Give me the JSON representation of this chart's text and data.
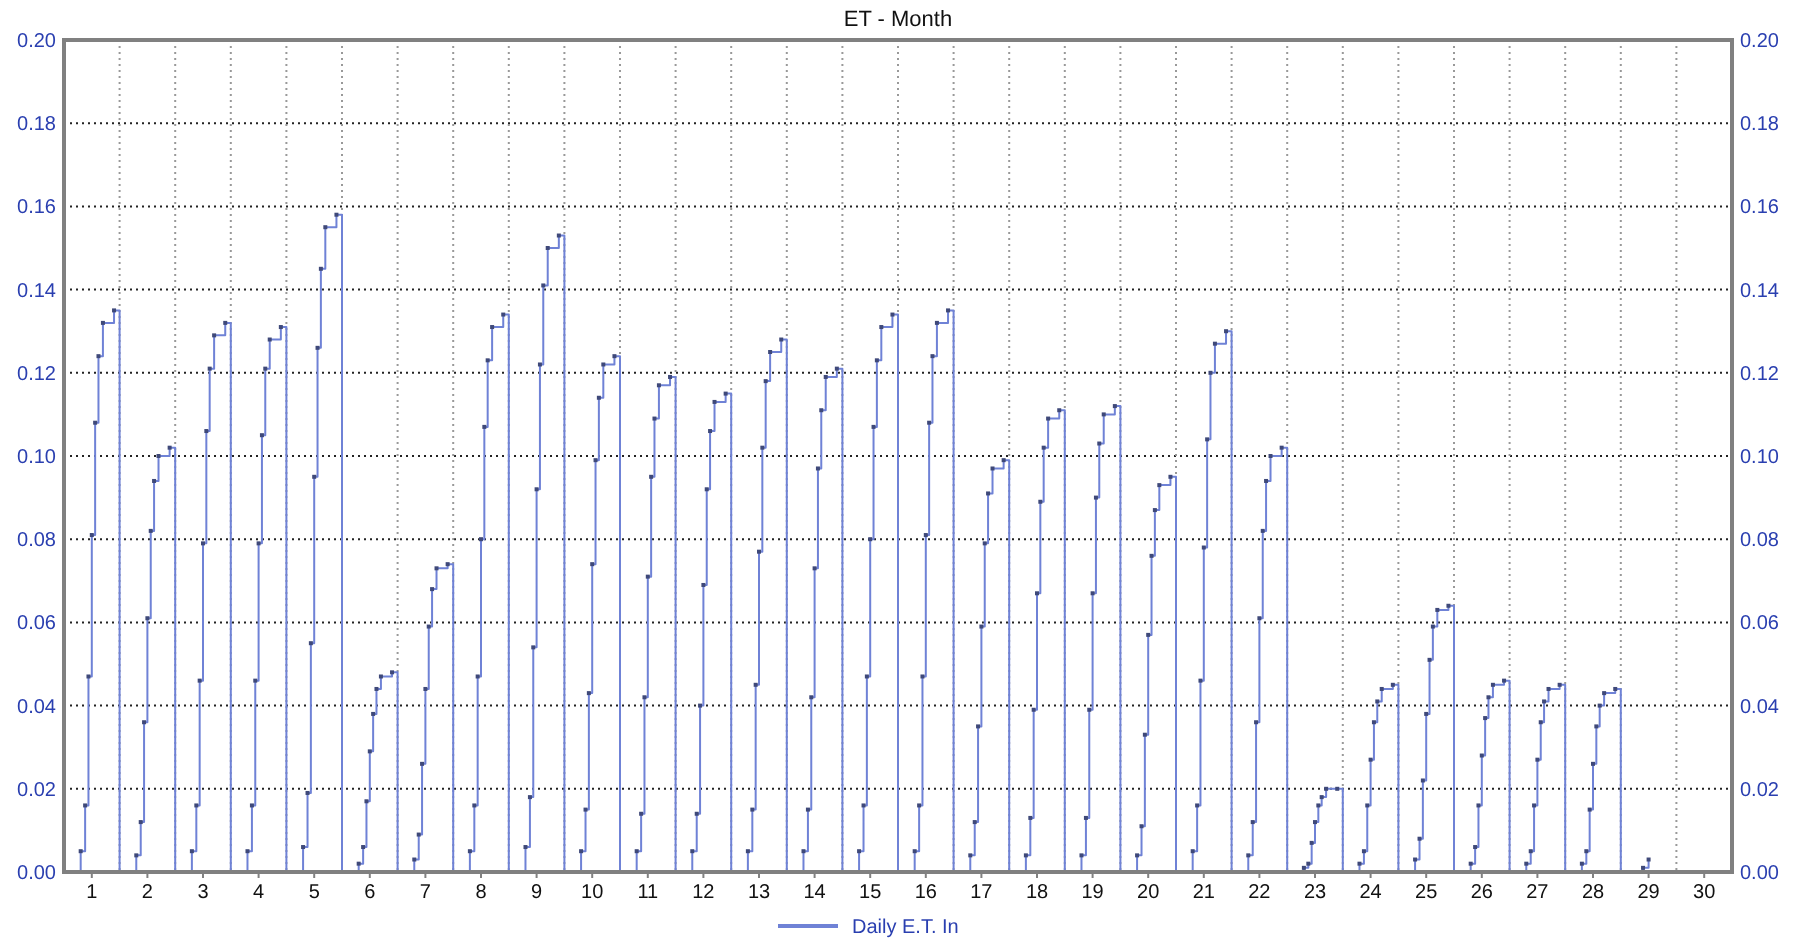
{
  "chart_data": {
    "type": "step",
    "title": "ET - Month",
    "legend": "bottom",
    "grid": true,
    "marker": "square",
    "line_style": "solid",
    "xlim": [
      0.5,
      30.5
    ],
    "xticks": [
      1,
      {
        "value": 1.5,
        "label": null
      },
      2,
      {
        "value": 2.5,
        "label": null
      },
      3,
      {
        "value": 3.5,
        "label": null
      },
      4,
      {
        "value": 4.5,
        "label": null
      },
      5,
      {
        "value": 5.5,
        "label": null
      },
      6,
      {
        "value": 6.5,
        "label": null
      },
      7,
      {
        "value": 7.5,
        "label": null
      },
      8,
      {
        "value": 8.5,
        "label": null
      },
      9,
      {
        "value": 9.5,
        "label": null
      },
      10,
      {
        "value": 10.5,
        "label": null
      },
      11,
      {
        "value": 11.5,
        "label": null
      },
      12,
      {
        "value": 12.5,
        "label": null
      },
      13,
      {
        "value": 13.5,
        "label": null
      },
      14,
      {
        "value": 14.5,
        "label": null
      },
      15,
      {
        "value": 15.5,
        "label": null
      },
      16,
      {
        "value": 16.5,
        "label": null
      },
      17,
      {
        "value": 17.5,
        "label": null
      },
      18,
      {
        "value": 18.5,
        "label": null
      },
      19,
      {
        "value": 19.5,
        "label": null
      },
      20,
      {
        "value": 20.5,
        "label": null
      },
      21,
      {
        "value": 21.5,
        "label": null
      },
      22,
      {
        "value": 22.5,
        "label": null
      },
      23,
      {
        "value": 23.5,
        "label": null
      },
      24,
      {
        "value": 24.5,
        "label": null
      },
      25,
      {
        "value": 25.5,
        "label": null
      },
      26,
      {
        "value": 26.5,
        "label": null
      },
      27,
      {
        "value": 27.5,
        "label": null
      },
      28,
      {
        "value": 28.5,
        "label": null
      },
      29,
      {
        "value": 29.5,
        "label": null
      },
      30
    ],
    "ylim": [
      0,
      0.2
    ],
    "yticks": [
      {
        "value": 0,
        "label": "0.00"
      },
      {
        "value": 0.02,
        "label": "0.02"
      },
      {
        "value": 0.04,
        "label": "0.04"
      },
      {
        "value": 0.06,
        "label": "0.06"
      },
      {
        "value": 0.08,
        "label": "0.08"
      },
      {
        "value": 0.1,
        "label": "0.10"
      },
      {
        "value": 0.12,
        "label": "0.12"
      },
      {
        "value": 0.14,
        "label": "0.14"
      },
      {
        "value": 0.16,
        "label": "0.16"
      },
      {
        "value": 0.18,
        "label": "0.18"
      },
      {
        "value": 0.2,
        "label": "0.20"
      }
    ],
    "y2lim": [
      0,
      0.2
    ],
    "y2ticks": [
      {
        "value": 0,
        "label": "0.00"
      },
      {
        "value": 0.02,
        "label": "0.02"
      },
      {
        "value": 0.04,
        "label": "0.04"
      },
      {
        "value": 0.06,
        "label": "0.06"
      },
      {
        "value": 0.08,
        "label": "0.08"
      },
      {
        "value": 0.1,
        "label": "0.10"
      },
      {
        "value": 0.12,
        "label": "0.12"
      },
      {
        "value": 0.14,
        "label": "0.14"
      },
      {
        "value": 0.16,
        "label": "0.16"
      },
      {
        "value": 0.18,
        "label": "0.18"
      },
      {
        "value": 0.2,
        "label": "0.20"
      }
    ],
    "series": [
      {
        "name": "Daily E.T. In",
        "color": "#6f82d6",
        "x": [
          0.5,
          0.8,
          0.88,
          0.94,
          1,
          1.06,
          1.12,
          1.2,
          1.4,
          1.5,
          1.8,
          1.88,
          1.94,
          2,
          2.06,
          2.12,
          2.2,
          2.4,
          2.5,
          2.8,
          2.88,
          2.94,
          3,
          3.06,
          3.12,
          3.2,
          3.4,
          3.5,
          3.8,
          3.88,
          3.94,
          4,
          4.06,
          4.12,
          4.2,
          4.4,
          4.5,
          4.8,
          4.88,
          4.94,
          5,
          5.06,
          5.12,
          5.2,
          5.4,
          5.5,
          5.8,
          5.88,
          5.94,
          6,
          6.06,
          6.12,
          6.2,
          6.4,
          6.5,
          6.8,
          6.88,
          6.94,
          7,
          7.06,
          7.12,
          7.2,
          7.4,
          7.5,
          7.8,
          7.88,
          7.94,
          8,
          8.06,
          8.12,
          8.2,
          8.4,
          8.5,
          8.8,
          8.88,
          8.94,
          9,
          9.06,
          9.12,
          9.2,
          9.4,
          9.5,
          9.8,
          9.88,
          9.94,
          10,
          10.06,
          10.12,
          10.2,
          10.4,
          10.5,
          10.8,
          10.88,
          10.94,
          11,
          11.06,
          11.12,
          11.2,
          11.4,
          11.5,
          11.8,
          11.88,
          11.94,
          12,
          12.06,
          12.12,
          12.2,
          12.4,
          12.5,
          12.8,
          12.88,
          12.94,
          13,
          13.06,
          13.12,
          13.2,
          13.4,
          13.5,
          13.8,
          13.88,
          13.94,
          14,
          14.06,
          14.12,
          14.2,
          14.4,
          14.5,
          14.8,
          14.88,
          14.94,
          15,
          15.06,
          15.12,
          15.2,
          15.4,
          15.5,
          15.8,
          15.88,
          15.94,
          16,
          16.06,
          16.12,
          16.2,
          16.4,
          16.5,
          16.8,
          16.88,
          16.94,
          17,
          17.06,
          17.12,
          17.2,
          17.4,
          17.5,
          17.8,
          17.88,
          17.94,
          18,
          18.06,
          18.12,
          18.2,
          18.4,
          18.5,
          18.8,
          18.88,
          18.94,
          19,
          19.06,
          19.12,
          19.2,
          19.4,
          19.5,
          19.8,
          19.88,
          19.94,
          20,
          20.06,
          20.12,
          20.2,
          20.4,
          20.5,
          20.8,
          20.88,
          20.94,
          21,
          21.06,
          21.12,
          21.2,
          21.4,
          21.5,
          21.8,
          21.88,
          21.94,
          22,
          22.06,
          22.12,
          22.2,
          22.4,
          22.5,
          22.8,
          22.88,
          22.94,
          23,
          23.06,
          23.12,
          23.2,
          23.4,
          23.5,
          23.8,
          23.88,
          23.94,
          24,
          24.06,
          24.12,
          24.2,
          24.4,
          24.5,
          24.8,
          24.88,
          24.94,
          25,
          25.06,
          25.12,
          25.2,
          25.4,
          25.5,
          25.8,
          25.88,
          25.94,
          26,
          26.06,
          26.12,
          26.2,
          26.4,
          26.5,
          26.8,
          26.88,
          26.94,
          27,
          27.06,
          27.12,
          27.2,
          27.4,
          27.5,
          27.8,
          27.88,
          27.94,
          28,
          28.06,
          28.12,
          28.2,
          28.4,
          28.5,
          28.9,
          29.0
        ],
        "values": [
          0,
          0.005,
          0.016,
          0.047,
          0.081,
          0.108,
          0.124,
          0.132,
          0.135,
          0,
          0.004,
          0.012,
          0.036,
          0.061,
          0.082,
          0.094,
          0.1,
          0.102,
          0,
          0.005,
          0.016,
          0.046,
          0.079,
          0.106,
          0.121,
          0.129,
          0.132,
          0,
          0.005,
          0.016,
          0.046,
          0.079,
          0.105,
          0.121,
          0.128,
          0.131,
          0,
          0.006,
          0.019,
          0.055,
          0.095,
          0.126,
          0.145,
          0.155,
          0.158,
          0,
          0.002,
          0.006,
          0.017,
          0.029,
          0.038,
          0.044,
          0.047,
          0.048,
          0,
          0.003,
          0.009,
          0.026,
          0.044,
          0.059,
          0.068,
          0.073,
          0.074,
          0,
          0.005,
          0.016,
          0.047,
          0.08,
          0.107,
          0.123,
          0.131,
          0.134,
          0,
          0.006,
          0.018,
          0.054,
          0.092,
          0.122,
          0.141,
          0.15,
          0.153,
          0,
          0.005,
          0.015,
          0.043,
          0.074,
          0.099,
          0.114,
          0.122,
          0.124,
          0,
          0.005,
          0.014,
          0.042,
          0.071,
          0.095,
          0.109,
          0.117,
          0.119,
          0,
          0.005,
          0.014,
          0.04,
          0.069,
          0.092,
          0.106,
          0.113,
          0.115,
          0,
          0.005,
          0.015,
          0.045,
          0.077,
          0.102,
          0.118,
          0.125,
          0.128,
          0,
          0.005,
          0.015,
          0.042,
          0.073,
          0.097,
          0.111,
          0.119,
          0.121,
          0,
          0.005,
          0.016,
          0.047,
          0.08,
          0.107,
          0.123,
          0.131,
          0.134,
          0,
          0.005,
          0.016,
          0.047,
          0.081,
          0.108,
          0.124,
          0.132,
          0.135,
          0,
          0.004,
          0.012,
          0.035,
          0.059,
          0.079,
          0.091,
          0.097,
          0.099,
          0,
          0.004,
          0.013,
          0.039,
          0.067,
          0.089,
          0.102,
          0.109,
          0.111,
          0,
          0.004,
          0.013,
          0.039,
          0.067,
          0.09,
          0.103,
          0.11,
          0.112,
          0,
          0.004,
          0.011,
          0.033,
          0.057,
          0.076,
          0.087,
          0.093,
          0.095,
          0,
          0.005,
          0.016,
          0.046,
          0.078,
          0.104,
          0.12,
          0.127,
          0.13,
          0,
          0.004,
          0.012,
          0.036,
          0.061,
          0.082,
          0.094,
          0.1,
          0.102,
          0,
          0.001,
          0.002,
          0.007,
          0.012,
          0.016,
          0.018,
          0.02,
          0.02,
          0,
          0.002,
          0.005,
          0.016,
          0.027,
          0.036,
          0.041,
          0.044,
          0.045,
          0,
          0.003,
          0.008,
          0.022,
          0.038,
          0.051,
          0.059,
          0.063,
          0.064,
          0,
          0.002,
          0.006,
          0.016,
          0.028,
          0.037,
          0.042,
          0.045,
          0.046,
          0,
          0.002,
          0.005,
          0.016,
          0.027,
          0.036,
          0.041,
          0.044,
          0.045,
          0,
          0.002,
          0.005,
          0.015,
          0.026,
          0.035,
          0.04,
          0.043,
          0.044,
          0,
          0.001,
          0.003
        ]
      }
    ]
  }
}
